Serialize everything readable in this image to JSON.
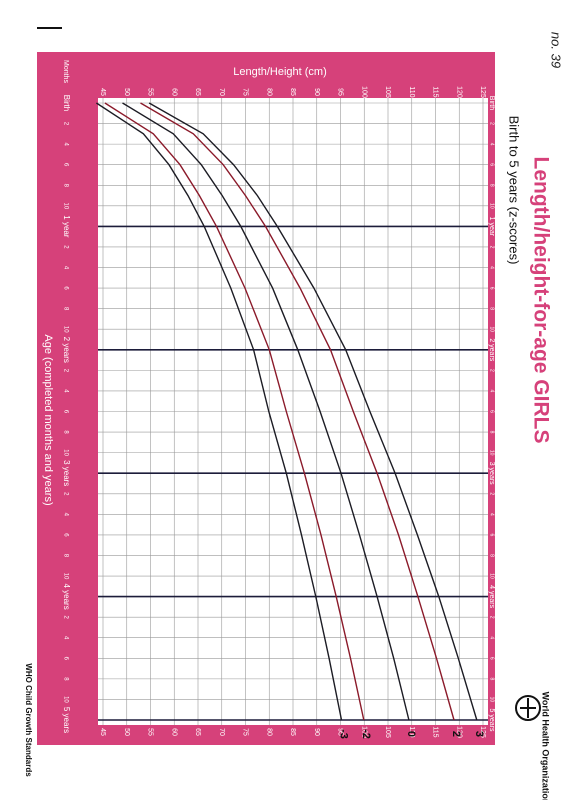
{
  "chart_data": {
    "type": "line",
    "title": "Length/height-for-age GIRLS",
    "subtitle": "Birth to 5 years (z-scores)",
    "x_label": "Age (completed months and years)",
    "y_label": "Length/Height (cm)",
    "x_unit_label": "Months",
    "footer": "WHO Child Growth Standards",
    "logo_text": "World Health Organization",
    "note": "no. 39",
    "x": [
      0,
      3,
      6,
      9,
      12,
      18,
      24,
      30,
      36,
      42,
      48,
      54,
      60
    ],
    "series": [
      {
        "name": "3",
        "color": "#1c1c24",
        "values": [
          54.7,
          66.1,
          72.5,
          77.5,
          81.7,
          89.4,
          96.1,
          101.2,
          106.5,
          111.2,
          115.7,
          119.8,
          123.7
        ]
      },
      {
        "name": "2",
        "color": "#8b1a2a",
        "values": [
          52.9,
          64.0,
          70.3,
          75.0,
          79.2,
          86.5,
          92.9,
          97.7,
          102.7,
          107.2,
          111.3,
          115.2,
          118.9
        ]
      },
      {
        "name": "0",
        "color": "#1c1c24",
        "values": [
          49.1,
          59.8,
          65.7,
          70.1,
          74.0,
          80.7,
          86.0,
          90.7,
          95.1,
          99.0,
          102.7,
          106.2,
          109.4
        ]
      },
      {
        "name": "-2",
        "color": "#8b1a2a",
        "values": [
          45.4,
          55.6,
          61.2,
          65.3,
          68.9,
          74.9,
          80.0,
          83.6,
          87.4,
          90.9,
          94.1,
          97.1,
          99.9
        ]
      },
      {
        "name": "-3",
        "color": "#1c1c24",
        "values": [
          43.6,
          53.5,
          58.9,
          62.9,
          66.3,
          71.9,
          76.7,
          79.9,
          83.6,
          86.8,
          89.8,
          92.6,
          95.2
        ]
      }
    ],
    "xlim": [
      0,
      60
    ],
    "ylim": [
      45,
      125
    ],
    "xticks": [
      {
        "value": 0,
        "label": "Birth"
      },
      2,
      4,
      6,
      8,
      10,
      {
        "value": 12,
        "label": "1 year"
      },
      {
        "value": 14,
        "label": "2"
      },
      {
        "value": 16,
        "label": "4"
      },
      {
        "value": 18,
        "label": "6"
      },
      {
        "value": 20,
        "label": "8"
      },
      {
        "value": 22,
        "label": "10"
      },
      {
        "value": 24,
        "label": "2 years"
      },
      {
        "value": 26,
        "label": "2"
      },
      {
        "value": 28,
        "label": "4"
      },
      {
        "value": 30,
        "label": "6"
      },
      {
        "value": 32,
        "label": "8"
      },
      {
        "value": 34,
        "label": "10"
      },
      {
        "value": 36,
        "label": "3 years"
      },
      {
        "value": 38,
        "label": "2"
      },
      {
        "value": 40,
        "label": "4"
      },
      {
        "value": 42,
        "label": "6"
      },
      {
        "value": 44,
        "label": "8"
      },
      {
        "value": 46,
        "label": "10"
      },
      {
        "value": 48,
        "label": "4 years"
      },
      {
        "value": 50,
        "label": "2"
      },
      {
        "value": 52,
        "label": "4"
      },
      {
        "value": 54,
        "label": "6"
      },
      {
        "value": 56,
        "label": "8"
      },
      {
        "value": 58,
        "label": "10"
      },
      {
        "value": 60,
        "label": "5 years"
      }
    ],
    "yticks": [
      45,
      50,
      55,
      60,
      65,
      70,
      75,
      80,
      85,
      90,
      95,
      100,
      105,
      110,
      115,
      120,
      125
    ],
    "grid": true,
    "frame_color": "#d6417a"
  }
}
